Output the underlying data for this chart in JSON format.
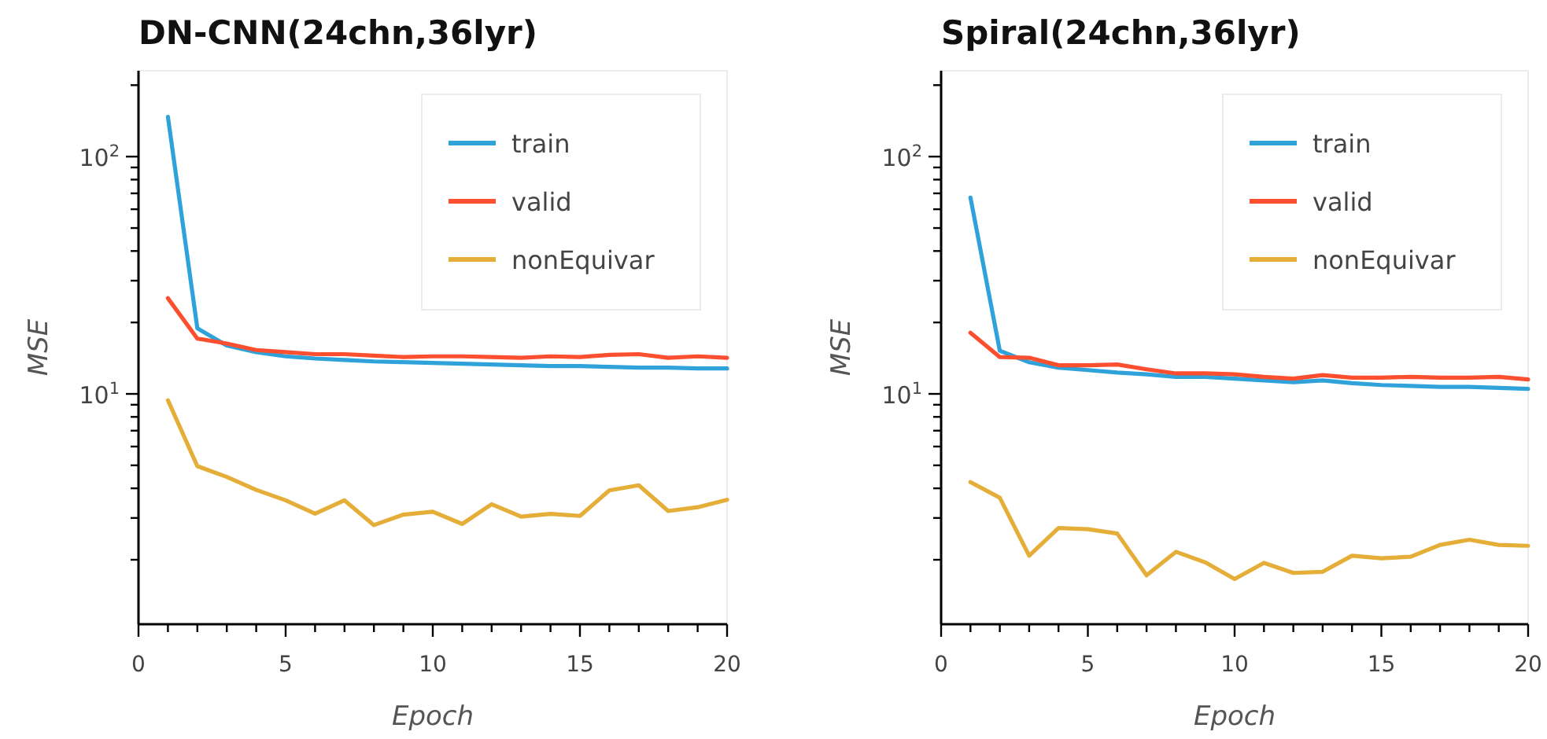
{
  "chart_data": [
    {
      "type": "line",
      "title": "DN-CNN(24chn,36lyr)",
      "xlabel": "Epoch",
      "ylabel": "MSE",
      "log": "y",
      "grid": false,
      "legend": "top right",
      "line_style": "solid",
      "marker": "none",
      "x": [
        1,
        2,
        3,
        4,
        5,
        6,
        7,
        8,
        9,
        10,
        11,
        12,
        13,
        14,
        15,
        16,
        17,
        18,
        19,
        20
      ],
      "xlim": [
        0,
        20
      ],
      "xticks": [
        0,
        {
          "value": 1,
          "label": null
        },
        {
          "value": 2,
          "label": null
        },
        {
          "value": 3,
          "label": null
        },
        {
          "value": 4,
          "label": null
        },
        5,
        {
          "value": 6,
          "label": null
        },
        {
          "value": 7,
          "label": null
        },
        {
          "value": 8,
          "label": null
        },
        {
          "value": 9,
          "label": null
        },
        10,
        {
          "value": 11,
          "label": null
        },
        {
          "value": 12,
          "label": null
        },
        {
          "value": 13,
          "label": null
        },
        {
          "value": 14,
          "label": null
        },
        15,
        {
          "value": 16,
          "label": null
        },
        {
          "value": 17,
          "label": null
        },
        {
          "value": 18,
          "label": null
        },
        {
          "value": 19,
          "label": null
        },
        20
      ],
      "ylim": [
        1.07,
        230
      ],
      "yticks": [
        {
          "value": 2,
          "label": null
        },
        {
          "value": 3,
          "label": null
        },
        {
          "value": 4,
          "label": null
        },
        {
          "value": 5,
          "label": null
        },
        {
          "value": 6,
          "label": null
        },
        {
          "value": 7,
          "label": null
        },
        {
          "value": 8,
          "label": null
        },
        {
          "value": 9,
          "label": null
        },
        {
          "value": 10,
          "label": "10$^{1}$"
        },
        {
          "value": 20,
          "label": null
        },
        {
          "value": 30,
          "label": null
        },
        {
          "value": 40,
          "label": null
        },
        {
          "value": 50,
          "label": null
        },
        {
          "value": 60,
          "label": null
        },
        {
          "value": 70,
          "label": null
        },
        {
          "value": 80,
          "label": null
        },
        {
          "value": 90,
          "label": null
        },
        {
          "value": 100,
          "label": "10$^{2}$"
        },
        {
          "value": 200,
          "label": null
        }
      ],
      "series": [
        {
          "name": "train",
          "color": "#30a2da",
          "values": [
            147,
            18.9,
            16.0,
            15.0,
            14.4,
            14.1,
            13.9,
            13.7,
            13.6,
            13.5,
            13.4,
            13.3,
            13.2,
            13.1,
            13.1,
            13.0,
            12.9,
            12.9,
            12.8,
            12.8
          ]
        },
        {
          "name": "valid",
          "color": "#fc4f30",
          "values": [
            25.3,
            17.1,
            16.3,
            15.3,
            15.0,
            14.7,
            14.7,
            14.5,
            14.3,
            14.4,
            14.4,
            14.3,
            14.2,
            14.4,
            14.3,
            14.6,
            14.7,
            14.2,
            14.4,
            14.2
          ]
        },
        {
          "name": "nonEquivar",
          "color": "#e5ae38",
          "values": [
            9.4,
            4.96,
            4.47,
            3.94,
            3.56,
            3.13,
            3.56,
            2.8,
            3.1,
            3.19,
            2.83,
            3.43,
            3.04,
            3.12,
            3.06,
            3.92,
            4.12,
            3.21,
            3.33,
            3.58
          ]
        }
      ]
    },
    {
      "type": "line",
      "title": "Spiral(24chn,36lyr)",
      "xlabel": "Epoch",
      "ylabel": "MSE",
      "log": "y",
      "grid": false,
      "legend": "top right",
      "line_style": "solid",
      "marker": "none",
      "x": [
        1,
        2,
        3,
        4,
        5,
        6,
        7,
        8,
        9,
        10,
        11,
        12,
        13,
        14,
        15,
        16,
        17,
        18,
        19,
        20
      ],
      "xlim": [
        0,
        20
      ],
      "xticks": [
        0,
        {
          "value": 1,
          "label": null
        },
        {
          "value": 2,
          "label": null
        },
        {
          "value": 3,
          "label": null
        },
        {
          "value": 4,
          "label": null
        },
        5,
        {
          "value": 6,
          "label": null
        },
        {
          "value": 7,
          "label": null
        },
        {
          "value": 8,
          "label": null
        },
        {
          "value": 9,
          "label": null
        },
        10,
        {
          "value": 11,
          "label": null
        },
        {
          "value": 12,
          "label": null
        },
        {
          "value": 13,
          "label": null
        },
        {
          "value": 14,
          "label": null
        },
        15,
        {
          "value": 16,
          "label": null
        },
        {
          "value": 17,
          "label": null
        },
        {
          "value": 18,
          "label": null
        },
        {
          "value": 19,
          "label": null
        },
        20
      ],
      "ylim": [
        1.07,
        230
      ],
      "yticks": [
        {
          "value": 2,
          "label": null
        },
        {
          "value": 3,
          "label": null
        },
        {
          "value": 4,
          "label": null
        },
        {
          "value": 5,
          "label": null
        },
        {
          "value": 6,
          "label": null
        },
        {
          "value": 7,
          "label": null
        },
        {
          "value": 8,
          "label": null
        },
        {
          "value": 9,
          "label": null
        },
        {
          "value": 10,
          "label": "10$^{1}$"
        },
        {
          "value": 20,
          "label": null
        },
        {
          "value": 30,
          "label": null
        },
        {
          "value": 40,
          "label": null
        },
        {
          "value": 50,
          "label": null
        },
        {
          "value": 60,
          "label": null
        },
        {
          "value": 70,
          "label": null
        },
        {
          "value": 80,
          "label": null
        },
        {
          "value": 90,
          "label": null
        },
        {
          "value": 100,
          "label": "10$^{2}$"
        },
        {
          "value": 200,
          "label": null
        }
      ],
      "series": [
        {
          "name": "train",
          "color": "#30a2da",
          "values": [
            67.2,
            15.2,
            13.6,
            12.9,
            12.6,
            12.3,
            12.1,
            11.8,
            11.8,
            11.6,
            11.4,
            11.2,
            11.4,
            11.1,
            10.9,
            10.8,
            10.7,
            10.7,
            10.6,
            10.5
          ]
        },
        {
          "name": "valid",
          "color": "#fc4f30",
          "values": [
            18.1,
            14.3,
            14.2,
            13.2,
            13.2,
            13.3,
            12.7,
            12.2,
            12.2,
            12.1,
            11.8,
            11.6,
            12.0,
            11.7,
            11.7,
            11.8,
            11.7,
            11.7,
            11.8,
            11.5
          ]
        },
        {
          "name": "nonEquivar",
          "color": "#e5ae38",
          "values": [
            4.25,
            3.65,
            2.08,
            2.72,
            2.69,
            2.58,
            1.72,
            2.16,
            1.95,
            1.66,
            1.94,
            1.76,
            1.78,
            2.08,
            2.03,
            2.06,
            2.31,
            2.43,
            2.31,
            2.29
          ]
        }
      ]
    }
  ]
}
